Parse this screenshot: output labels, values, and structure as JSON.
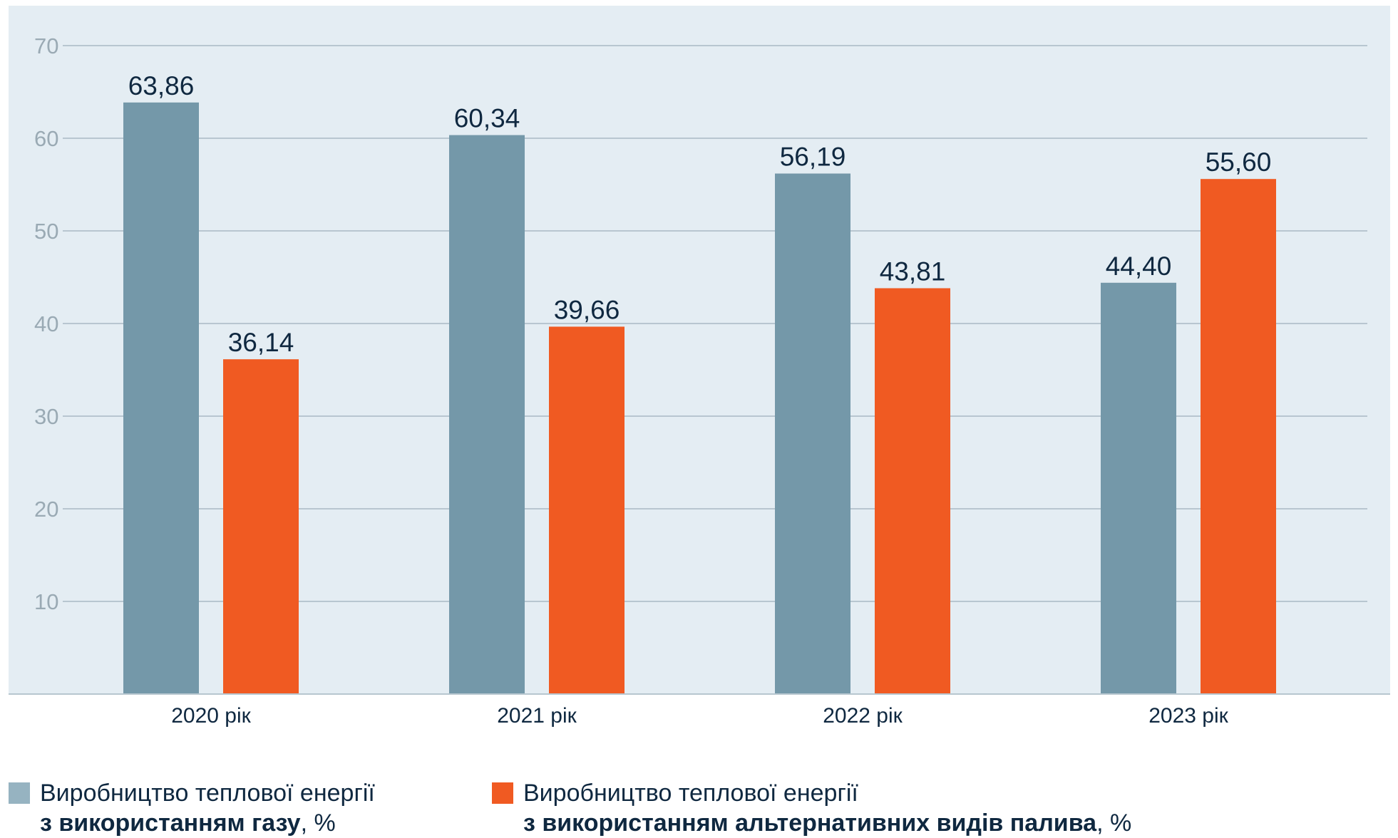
{
  "chart_data": {
    "type": "bar",
    "categories": [
      "2020 рік",
      "2021 рік",
      "2022 рік",
      "2023 рік"
    ],
    "series": [
      {
        "name": "Виробництво теплової енергії з використанням газу, %",
        "values": [
          63.86,
          60.34,
          56.19,
          44.4
        ],
        "value_labels": [
          "63,86",
          "60,34",
          "56,19",
          "44,40"
        ],
        "color": "#7498a9"
      },
      {
        "name": "Виробництво теплової енергії з використанням альтернативних видів палива, %",
        "values": [
          36.14,
          39.66,
          43.81,
          55.6
        ],
        "value_labels": [
          "36,14",
          "39,66",
          "43,81",
          "55,60"
        ],
        "color": "#f05a22"
      }
    ],
    "ylim": [
      0,
      70
    ],
    "yticks": [
      10,
      20,
      30,
      40,
      50,
      60,
      70
    ],
    "grid": true,
    "legend_position": "bottom",
    "background_color": "#e4edf3",
    "gridline_color": "#a9bac4",
    "tick_label_color": "#9aaab4",
    "text_color": "#0f2840"
  },
  "legend": [
    {
      "line1": "Виробництво теплової енергії",
      "line2_bold": "з використанням газу",
      "line2_suffix": ", %",
      "color": "#7498a9",
      "swatch_color": "#96b3c1"
    },
    {
      "line1": "Виробництво теплової енергії",
      "line2_bold": "з використанням альтернативних видів палива",
      "line2_suffix": ", %",
      "color": "#f05a22",
      "swatch_color": "#f05a22"
    }
  ]
}
